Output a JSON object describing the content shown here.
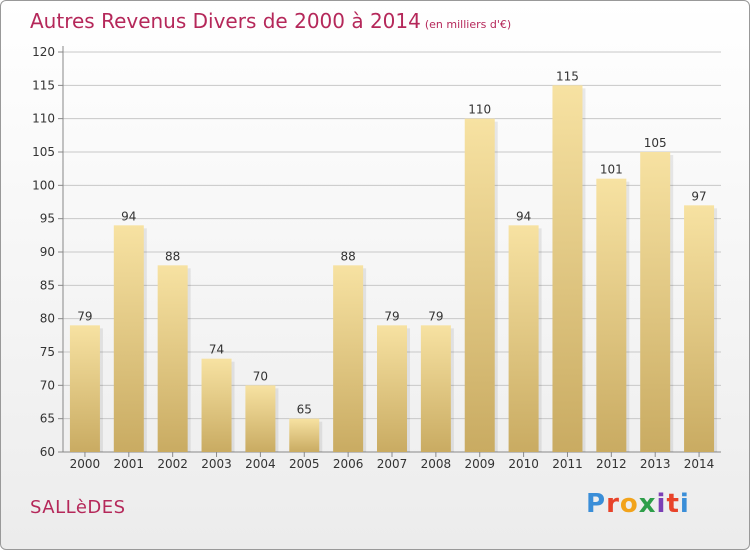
{
  "header": {
    "title": "Autres Revenus Divers de 2000 à 2014",
    "subtitle": "(en milliers d'€)"
  },
  "footer": {
    "place": "SALLèDES",
    "brand": "Proxiti",
    "brand_colors": [
      "#3a8ed8",
      "#e8432a",
      "#f2a31b",
      "#2e9e4a",
      "#7b3fb5",
      "#e8432a",
      "#3a8ed8"
    ]
  },
  "colors": {
    "accent": "#b5285a",
    "bar_light": "#f7e2a2",
    "bar_dark": "#c9ab62",
    "grid": "#c8c8c8"
  },
  "chart_data": {
    "type": "bar",
    "title": "Autres Revenus Divers de 2000 à 2014",
    "subtitle": "(en milliers d'€)",
    "categories": [
      "2000",
      "2001",
      "2002",
      "2003",
      "2004",
      "2005",
      "2006",
      "2007",
      "2008",
      "2009",
      "2010",
      "2011",
      "2012",
      "2013",
      "2014"
    ],
    "values": [
      79,
      94,
      88,
      74,
      70,
      65,
      88,
      79,
      79,
      110,
      94,
      115,
      101,
      105,
      97
    ],
    "ylim": [
      60,
      120
    ],
    "yticks": [
      60,
      65,
      70,
      75,
      80,
      85,
      90,
      95,
      100,
      105,
      110,
      115,
      120
    ],
    "grid": true,
    "data_labels": true
  }
}
